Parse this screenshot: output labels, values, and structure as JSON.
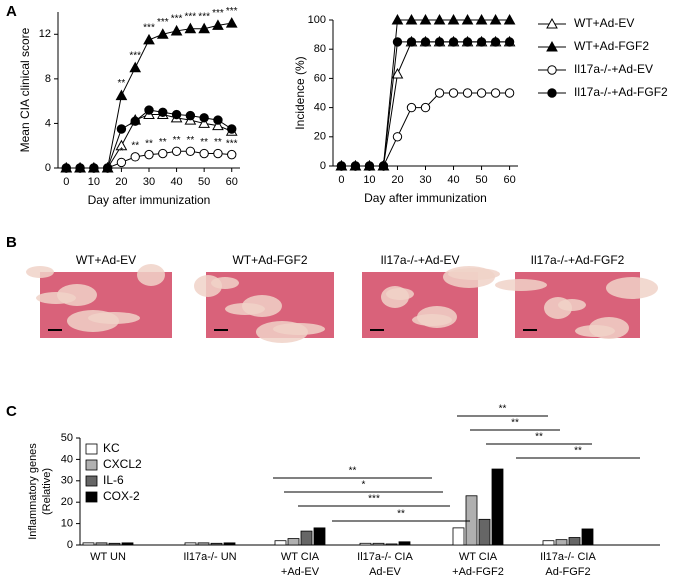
{
  "panels": [
    "A",
    "B",
    "C"
  ],
  "chart_data": [
    {
      "type": "line",
      "ylabel": "Mean CIA clinical score",
      "xlabel": "Day after immunization",
      "x": [
        0,
        5,
        10,
        15,
        20,
        25,
        30,
        35,
        40,
        45,
        50,
        55,
        60
      ],
      "xlim": [
        -3,
        63
      ],
      "xticks": [
        0,
        10,
        20,
        30,
        40,
        50,
        60
      ],
      "ylim": [
        0,
        14
      ],
      "yticks": [
        0,
        4,
        8,
        12
      ],
      "series": [
        {
          "name": "WT+Ad-EV",
          "color": "#000000",
          "marker": "triangle",
          "filled": false,
          "values": [
            0,
            0,
            0,
            0,
            2,
            4.3,
            4.8,
            4.8,
            4.5,
            4.3,
            4.0,
            3.8,
            3.3
          ]
        },
        {
          "name": "WT+Ad-FGF2",
          "color": "#000000",
          "marker": "triangle",
          "filled": true,
          "values": [
            0,
            0,
            0,
            0,
            6.5,
            9,
            11.5,
            12,
            12.3,
            12.5,
            12.5,
            12.8,
            13
          ]
        },
        {
          "name": "Il17a-/-+Ad-EV",
          "color": "#000000",
          "marker": "circle",
          "filled": false,
          "values": [
            0,
            0,
            0,
            0,
            0.5,
            1,
            1.2,
            1.3,
            1.5,
            1.5,
            1.3,
            1.3,
            1.2
          ]
        },
        {
          "name": "Il17a-/-+Ad-FGF2",
          "color": "#000000",
          "marker": "circle",
          "filled": true,
          "values": [
            0,
            0,
            0,
            0,
            3.5,
            4.2,
            5.2,
            5,
            4.8,
            4.7,
            4.5,
            4.3,
            3.5
          ]
        }
      ],
      "annotations_upper": [
        null,
        null,
        null,
        null,
        "**",
        "***",
        "***",
        "***",
        "***",
        "***",
        "***",
        "***",
        "***"
      ],
      "annotations_lower": [
        null,
        null,
        null,
        null,
        "*",
        "**",
        "**",
        "**",
        "**",
        "**",
        "**",
        "**",
        "***"
      ]
    },
    {
      "type": "line",
      "ylabel": "Incidence (%)",
      "xlabel": "Day after immunization",
      "x": [
        0,
        5,
        10,
        15,
        20,
        25,
        30,
        35,
        40,
        45,
        50,
        55,
        60
      ],
      "xlim": [
        -3,
        63
      ],
      "xticks": [
        0,
        10,
        20,
        30,
        40,
        50,
        60
      ],
      "ylim": [
        0,
        100
      ],
      "yticks": [
        0,
        20,
        40,
        60,
        80,
        100
      ],
      "legend": "right",
      "series": [
        {
          "name": "WT+Ad-EV",
          "color": "#000000",
          "marker": "triangle",
          "filled": false,
          "values": [
            0,
            0,
            0,
            0,
            63,
            85,
            85,
            85,
            85,
            85,
            85,
            85,
            85
          ]
        },
        {
          "name": "WT+Ad-FGF2",
          "color": "#000000",
          "marker": "triangle",
          "filled": true,
          "values": [
            0,
            0,
            0,
            0,
            100,
            100,
            100,
            100,
            100,
            100,
            100,
            100,
            100
          ]
        },
        {
          "name": "Il17a-/-+Ad-EV",
          "color": "#000000",
          "marker": "circle",
          "filled": false,
          "values": [
            0,
            0,
            0,
            0,
            20,
            40,
            40,
            50,
            50,
            50,
            50,
            50,
            50
          ]
        },
        {
          "name": "Il17a-/-+Ad-FGF2",
          "color": "#000000",
          "marker": "circle",
          "filled": true,
          "values": [
            0,
            0,
            0,
            0,
            85,
            85,
            85,
            85,
            85,
            85,
            85,
            85,
            85
          ]
        }
      ]
    },
    {
      "type": "bar",
      "ylabel": [
        "Inflammatory genes",
        "(Relative)"
      ],
      "categories": [
        [
          "WT UN"
        ],
        [
          "Il17a-/- UN"
        ],
        [
          "WT CIA",
          "+Ad-EV"
        ],
        [
          "Il17a-/- CIA",
          "Ad-EV"
        ],
        [
          "WT CIA",
          "+Ad-FGF2"
        ],
        [
          "Il17a-/- CIA",
          "Ad-FGF2"
        ]
      ],
      "ylim": [
        0,
        50
      ],
      "yticks": [
        0,
        10,
        20,
        30,
        40,
        50
      ],
      "legend": "upper left",
      "series": [
        {
          "name": "KC",
          "color": "#ffffff",
          "values": [
            1,
            1,
            2,
            0.8,
            8,
            2
          ]
        },
        {
          "name": "CXCL2",
          "color": "#b0b0b0",
          "values": [
            1,
            1,
            3,
            0.8,
            23,
            2.5
          ]
        },
        {
          "name": "IL-6",
          "color": "#666666",
          "values": [
            0.8,
            0.8,
            6.5,
            0.5,
            12,
            3.5
          ]
        },
        {
          "name": "COX-2",
          "color": "#000000",
          "values": [
            1,
            1,
            8,
            1.5,
            35.5,
            7.5
          ]
        }
      ],
      "comparisons": [
        "**",
        "*",
        "***",
        "**",
        "**",
        "**",
        "**",
        "**"
      ]
    }
  ],
  "panel_b": {
    "titles": [
      "WT+Ad-EV",
      "WT+Ad-FGF2",
      "Il17a-/-+Ad-EV",
      "Il17a-/-+Ad-FGF2"
    ]
  }
}
